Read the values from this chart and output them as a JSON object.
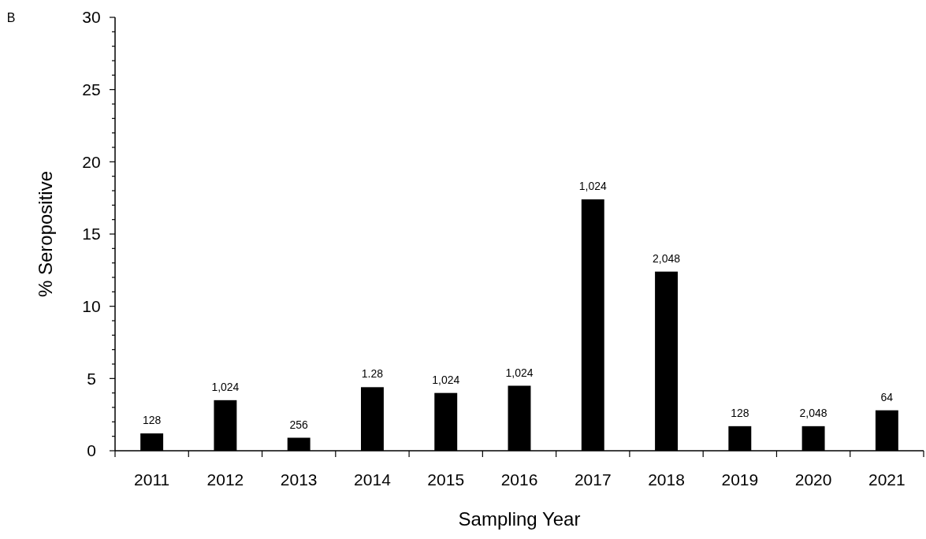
{
  "chart_data": {
    "type": "bar",
    "xlabel": "Sampling Year",
    "ylabel": "% Seropositive",
    "annotations": [
      "B",
      {
        "text": "128",
        "x": "2011",
        "y": 1.2
      },
      {
        "text": "1,024",
        "x": "2012",
        "y": 3.5
      },
      {
        "text": "256",
        "x": "2013",
        "y": 0.9
      },
      {
        "text": "1.28",
        "x": "2014",
        "y": 4.4
      },
      {
        "text": "1,024",
        "x": "2015",
        "y": 4.0
      },
      {
        "text": "1,024",
        "x": "2016",
        "y": 4.5
      },
      {
        "text": "1,024",
        "x": "2017",
        "y": 17.4
      },
      {
        "text": "2,048",
        "x": "2018",
        "y": 12.4
      },
      {
        "text": "128",
        "x": "2019",
        "y": 1.7
      },
      {
        "text": "2,048",
        "x": "2020",
        "y": 1.7
      },
      {
        "text": "64",
        "x": "2021",
        "y": 2.8
      }
    ],
    "categories": [
      "2011",
      "2012",
      "2013",
      "2014",
      "2015",
      "2016",
      "2017",
      "2018",
      "2019",
      "2020",
      "2021"
    ],
    "values": [
      1.2,
      3.5,
      0.9,
      4.4,
      4.0,
      4.5,
      17.4,
      12.4,
      1.7,
      1.7,
      2.8
    ],
    "color": "#000000",
    "ylim": [
      0,
      30
    ],
    "yticks": [
      0,
      {
        "value": 1,
        "label": null
      },
      {
        "value": 2,
        "label": null
      },
      {
        "value": 3,
        "label": null
      },
      {
        "value": 4,
        "label": null
      },
      5,
      {
        "value": 6,
        "label": null
      },
      {
        "value": 7,
        "label": null
      },
      {
        "value": 8,
        "label": null
      },
      {
        "value": 9,
        "label": null
      },
      10,
      {
        "value": 11,
        "label": null
      },
      {
        "value": 12,
        "label": null
      },
      {
        "value": 13,
        "label": null
      },
      {
        "value": 14,
        "label": null
      },
      15,
      {
        "value": 16,
        "label": null
      },
      {
        "value": 17,
        "label": null
      },
      {
        "value": 18,
        "label": null
      },
      {
        "value": 19,
        "label": null
      },
      20,
      {
        "value": 21,
        "label": null
      },
      {
        "value": 22,
        "label": null
      },
      {
        "value": 23,
        "label": null
      },
      {
        "value": 24,
        "label": null
      },
      25,
      {
        "value": 26,
        "label": null
      },
      {
        "value": 27,
        "label": null
      },
      {
        "value": 28,
        "label": null
      },
      {
        "value": 29,
        "label": null
      },
      30
    ],
    "grid": false
  }
}
